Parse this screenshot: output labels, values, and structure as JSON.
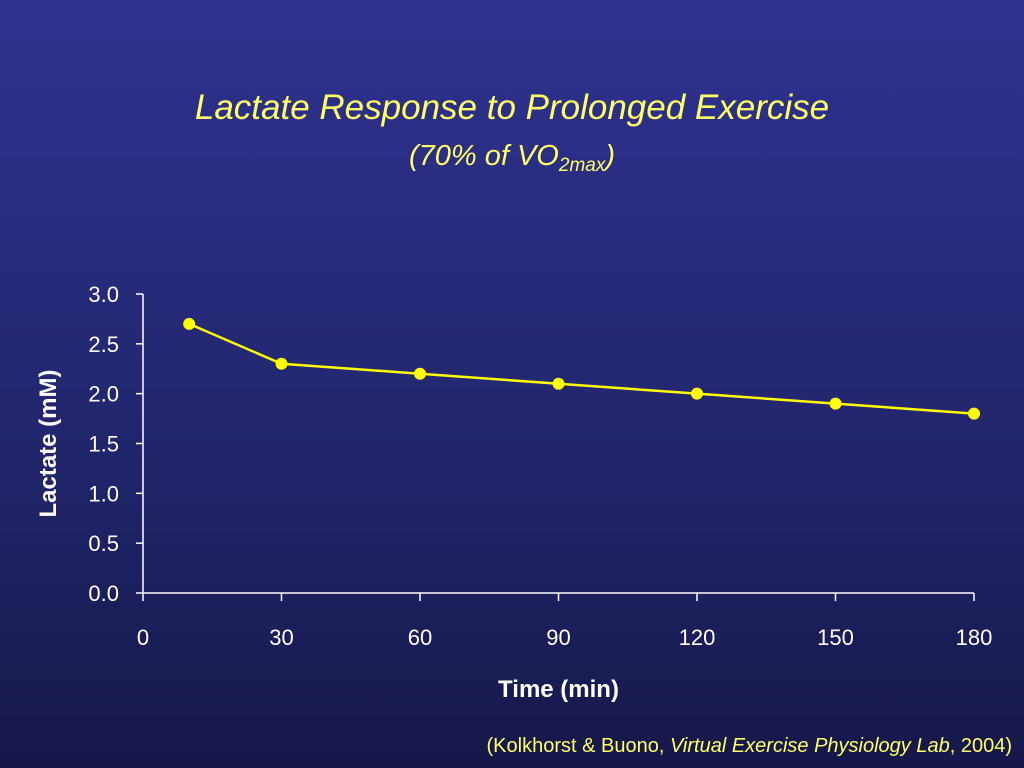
{
  "title": {
    "main": "Lactate Response to Prolonged Exercise",
    "sub_prefix": "(70% of VO",
    "sub_subscript": "2max",
    "sub_suffix": ")"
  },
  "citation": {
    "prefix": "(Kolkhorst & Buono, ",
    "italic": "Virtual Exercise Physiology Lab",
    "suffix": ", 2004)"
  },
  "colors": {
    "background_top": "#2f3290",
    "background_bottom": "#16184a",
    "title": "#ffff66",
    "series": "#ffff00",
    "axis": "#ffffff"
  },
  "chart_data": {
    "type": "line",
    "xlabel": "Time (min)",
    "ylabel": "Lactate (mM)",
    "xlim": [
      0,
      180
    ],
    "ylim": [
      0.0,
      3.0
    ],
    "x_ticks": [
      "0",
      "30",
      "60",
      "90",
      "120",
      "150",
      "180"
    ],
    "y_ticks": [
      "0.0",
      "0.5",
      "1.0",
      "1.5",
      "2.0",
      "2.5",
      "3.0"
    ],
    "grid": false,
    "legend": "none",
    "series": [
      {
        "x": [
          10,
          30,
          60,
          90,
          120,
          150,
          180
        ],
        "y": [
          2.7,
          2.3,
          2.2,
          2.1,
          2.0,
          1.9,
          1.8
        ]
      }
    ]
  }
}
